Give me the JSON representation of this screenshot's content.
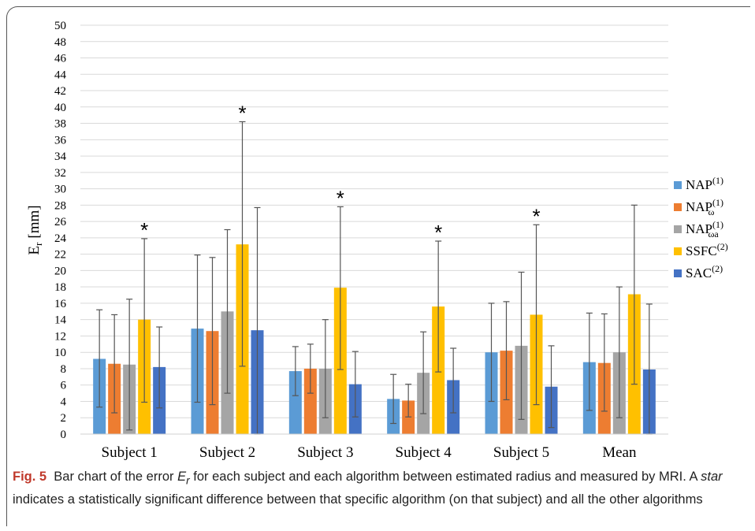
{
  "chart_data": {
    "type": "bar",
    "ylabel": "E",
    "ylabel_sub": "r",
    "ylabel_unit": "[mm]",
    "ylim": [
      0,
      50
    ],
    "ytick_step": 2,
    "grid": true,
    "legend_position": "right",
    "categories": [
      "Subject 1",
      "Subject 2",
      "Subject 3",
      "Subject 4",
      "Subject 5",
      "Mean"
    ],
    "series": [
      {
        "name": "NAP",
        "sup": "(1)",
        "sub": "",
        "color": "#5b9bd5",
        "values": [
          9.2,
          12.9,
          7.7,
          4.3,
          10.0,
          8.8
        ],
        "err_low": [
          3.3,
          3.9,
          4.7,
          1.3,
          4.0,
          2.9
        ],
        "err_high": [
          15.2,
          21.9,
          10.7,
          7.3,
          16.0,
          14.8
        ]
      },
      {
        "name": "NAP",
        "sup": "(1)",
        "sub": "ω",
        "color": "#ed7d31",
        "values": [
          8.6,
          12.6,
          8.0,
          4.1,
          10.2,
          8.7
        ],
        "err_low": [
          2.6,
          3.6,
          5.0,
          2.1,
          4.2,
          2.8
        ],
        "err_high": [
          14.6,
          21.6,
          11.0,
          6.1,
          16.2,
          14.7
        ]
      },
      {
        "name": "NAP",
        "sup": "(1)",
        "sub": "ωa",
        "color": "#a5a5a5",
        "values": [
          8.5,
          15.0,
          8.0,
          7.5,
          10.8,
          10.0
        ],
        "err_low": [
          0.5,
          5.0,
          2.0,
          2.5,
          1.8,
          2.0
        ],
        "err_high": [
          16.5,
          25.0,
          14.0,
          12.5,
          19.8,
          18.0
        ]
      },
      {
        "name": "SSFC",
        "sup": "(2)",
        "sub": "",
        "color": "#ffc000",
        "values": [
          14.0,
          23.2,
          17.9,
          15.6,
          14.6,
          17.1
        ],
        "err_low": [
          3.9,
          8.3,
          7.9,
          7.6,
          3.6,
          6.1
        ],
        "err_high": [
          23.9,
          38.2,
          27.8,
          23.6,
          25.6,
          28.0
        ]
      },
      {
        "name": "SAC",
        "sup": "(2)",
        "sub": "",
        "color": "#4472c4",
        "values": [
          8.2,
          12.7,
          6.1,
          6.6,
          5.8,
          7.9
        ],
        "err_low": [
          3.2,
          0.0,
          2.1,
          2.6,
          0.8,
          0.0
        ],
        "err_high": [
          13.1,
          27.7,
          10.1,
          10.5,
          10.8,
          15.9
        ]
      }
    ],
    "stars": [
      {
        "category": 0,
        "series": 3,
        "label": "*"
      },
      {
        "category": 1,
        "series": 3,
        "label": "*"
      },
      {
        "category": 2,
        "series": 3,
        "label": "*"
      },
      {
        "category": 3,
        "series": 3,
        "label": "*"
      },
      {
        "category": 4,
        "series": 3,
        "label": "*"
      }
    ]
  },
  "caption": {
    "fig_label": "Fig. 5",
    "text_1": "Bar chart of the error ",
    "text_var": "E",
    "text_var_sub": "r",
    "text_2": " for each subject and each algorithm between estimated radius and measured by MRI. A ",
    "text_star": "star",
    "text_3": " indicates a statistically significant difference between that specific algorithm (on that subject) and all the other algorithms"
  }
}
